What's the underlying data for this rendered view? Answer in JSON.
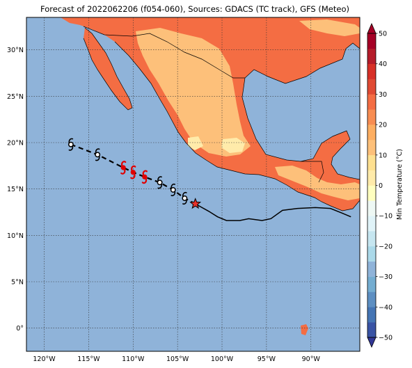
{
  "title": "Forecast of 2022062206 (f054-060), Sources: GDACS (TC track), GFS (Meteo)",
  "map": {
    "lon_range": [
      -122,
      -84.5
    ],
    "lat_range": [
      -2.5,
      33.5
    ],
    "lon_ticks": [
      -120,
      -115,
      -110,
      -105,
      -100,
      -95,
      -90
    ],
    "lat_ticks": [
      0,
      5,
      10,
      15,
      20,
      25,
      30
    ],
    "lon_tick_labels": [
      "120°W",
      "115°W",
      "110°W",
      "105°W",
      "100°W",
      "95°W",
      "90°W"
    ],
    "lat_tick_labels": [
      "0°",
      "5°N",
      "10°N",
      "15°N",
      "20°N",
      "25°N",
      "30°N"
    ],
    "ocean_color": "#8fb3d9",
    "grid": "dotted"
  },
  "colorbar": {
    "label": "Min Temperature (°C)",
    "levels": [
      -50,
      -45,
      -40,
      -35,
      -30,
      -25,
      -20,
      -15,
      -10,
      -5,
      0,
      5,
      10,
      15,
      20,
      25,
      30,
      35,
      40,
      45,
      50
    ],
    "colors": [
      "#313695",
      "#3953a4",
      "#4575b4",
      "#5d8fc2",
      "#74add1",
      "#8fb3d9",
      "#abd9e9",
      "#c6e6f0",
      "#e0f3f8",
      "#eef8f4",
      "#ffffbf",
      "#ffebaa",
      "#fee090",
      "#fdc07a",
      "#fdae61",
      "#f88d52",
      "#f46d43",
      "#e04a33",
      "#d73027",
      "#b51c2a",
      "#a50026"
    ],
    "tick_values": [
      -50,
      -40,
      -30,
      -20,
      -10,
      0,
      10,
      20,
      30,
      40,
      50
    ],
    "tick_labels": [
      "−50",
      "−40",
      "−30",
      "−20",
      "−10",
      "0",
      "10",
      "20",
      "30",
      "40",
      "50"
    ]
  },
  "track": {
    "past_track": [
      [
        -85.5,
        12.0
      ],
      [
        -86.5,
        12.4
      ],
      [
        -87.8,
        12.9
      ],
      [
        -89.5,
        13.0
      ],
      [
        -91.5,
        12.9
      ],
      [
        -93.2,
        12.7
      ],
      [
        -94.5,
        11.8
      ],
      [
        -95.5,
        11.6
      ],
      [
        -97.0,
        11.8
      ],
      [
        -98.0,
        11.6
      ],
      [
        -99.5,
        11.6
      ],
      [
        -100.5,
        12.0
      ],
      [
        -101.5,
        12.6
      ],
      [
        -103.0,
        13.4
      ]
    ],
    "current_position": [
      -103.0,
      13.4
    ],
    "forecast_track": [
      [
        -103.0,
        13.4
      ],
      [
        -104.2,
        14.0
      ],
      [
        -105.5,
        14.9
      ],
      [
        -107.0,
        15.7
      ],
      [
        -108.7,
        16.3
      ],
      [
        -110.0,
        16.8
      ],
      [
        -111.1,
        17.3
      ],
      [
        -114.0,
        18.7
      ],
      [
        -117.0,
        19.8
      ]
    ],
    "forecast_points": [
      {
        "lon": -104.2,
        "lat": 14.0,
        "category": "tropical-storm",
        "color": "#000000"
      },
      {
        "lon": -105.5,
        "lat": 14.9,
        "category": "tropical-storm",
        "color": "#000000"
      },
      {
        "lon": -107.0,
        "lat": 15.7,
        "category": "tropical-storm",
        "color": "#000000"
      },
      {
        "lon": -108.7,
        "lat": 16.3,
        "category": "hurricane",
        "color": "#e00000"
      },
      {
        "lon": -110.0,
        "lat": 16.8,
        "category": "hurricane",
        "color": "#e00000"
      },
      {
        "lon": -111.1,
        "lat": 17.3,
        "category": "hurricane",
        "color": "#e00000"
      },
      {
        "lon": -114.0,
        "lat": 18.7,
        "category": "tropical-storm",
        "color": "#000000"
      },
      {
        "lon": -117.0,
        "lat": 19.8,
        "category": "tropical-storm",
        "color": "#000000"
      }
    ],
    "star_color": "#e8312a"
  }
}
